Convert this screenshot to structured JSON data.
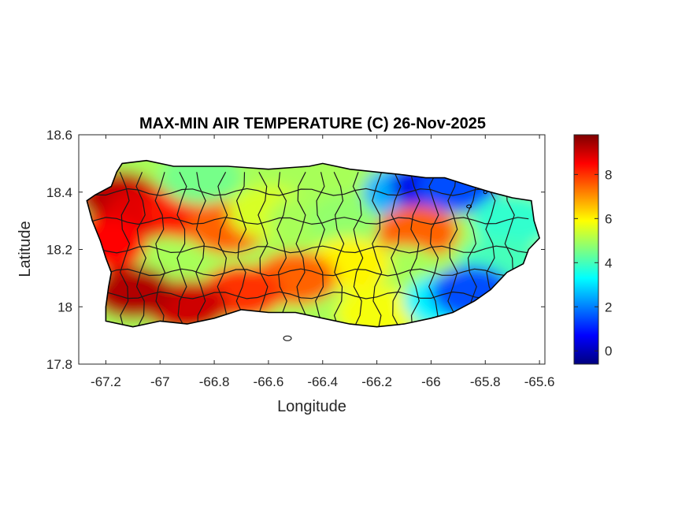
{
  "chart_data": {
    "type": "heatmap",
    "title": "MAX-MIN AIR TEMPERATURE (C) 26-Nov-2025",
    "xlabel": "Longitude",
    "ylabel": "Latitude",
    "xlim": [
      -67.3,
      -65.58
    ],
    "ylim": [
      17.8,
      18.6
    ],
    "x_ticks": [
      -67.2,
      -67,
      -66.8,
      -66.6,
      -66.4,
      -66.2,
      -66,
      -65.8,
      -65.6
    ],
    "x_tick_labels": [
      "-67.2",
      "-67",
      "-66.8",
      "-66.6",
      "-66.4",
      "-66.2",
      "-66",
      "-65.8",
      "-65.6"
    ],
    "y_ticks": [
      17.8,
      18,
      18.2,
      18.4,
      18.6
    ],
    "y_tick_labels": [
      "17.8",
      "18",
      "18.2",
      "18.4",
      "18.6"
    ],
    "colorbar": {
      "colormap": "jet",
      "range": [
        -0.6,
        9.8
      ],
      "ticks": [
        0,
        2,
        4,
        6,
        8
      ],
      "tick_labels": [
        "0",
        "2",
        "4",
        "6",
        "8"
      ]
    },
    "grid": false,
    "region": "Puerto Rico",
    "approx_field_samples": [
      {
        "lon": -67.15,
        "lat": 18.38,
        "value": 9.2
      },
      {
        "lon": -67.05,
        "lat": 18.33,
        "value": 8.8
      },
      {
        "lon": -66.9,
        "lat": 18.33,
        "value": 8.3
      },
      {
        "lon": -66.75,
        "lat": 18.28,
        "value": 7.5
      },
      {
        "lon": -66.6,
        "lat": 18.33,
        "value": 5.5
      },
      {
        "lon": -66.45,
        "lat": 18.3,
        "value": 5.0
      },
      {
        "lon": -66.3,
        "lat": 18.3,
        "value": 4.8
      },
      {
        "lon": -66.1,
        "lat": 18.4,
        "value": 2.5
      },
      {
        "lon": -66.0,
        "lat": 18.42,
        "value": 0.5
      },
      {
        "lon": -65.9,
        "lat": 18.42,
        "value": 1.5
      },
      {
        "lon": -65.7,
        "lat": 18.3,
        "value": 3.8
      },
      {
        "lon": -65.75,
        "lat": 18.15,
        "value": 4.0
      },
      {
        "lon": -66.05,
        "lat": 18.26,
        "value": 7.5
      },
      {
        "lon": -66.1,
        "lat": 18.12,
        "value": 5.0
      },
      {
        "lon": -66.3,
        "lat": 18.15,
        "value": 6.0
      },
      {
        "lon": -66.5,
        "lat": 18.1,
        "value": 7.5
      },
      {
        "lon": -66.7,
        "lat": 18.05,
        "value": 8.0
      },
      {
        "lon": -66.9,
        "lat": 18.0,
        "value": 9.0
      },
      {
        "lon": -67.1,
        "lat": 18.05,
        "value": 9.3
      },
      {
        "lon": -66.2,
        "lat": 17.98,
        "value": 5.8
      },
      {
        "lon": -65.95,
        "lat": 18.02,
        "value": 3.2
      },
      {
        "lon": -65.85,
        "lat": 18.05,
        "value": 1.5
      },
      {
        "lon": -66.85,
        "lat": 18.45,
        "value": 4.5
      },
      {
        "lon": -67.2,
        "lat": 18.22,
        "value": 8.5
      }
    ]
  }
}
